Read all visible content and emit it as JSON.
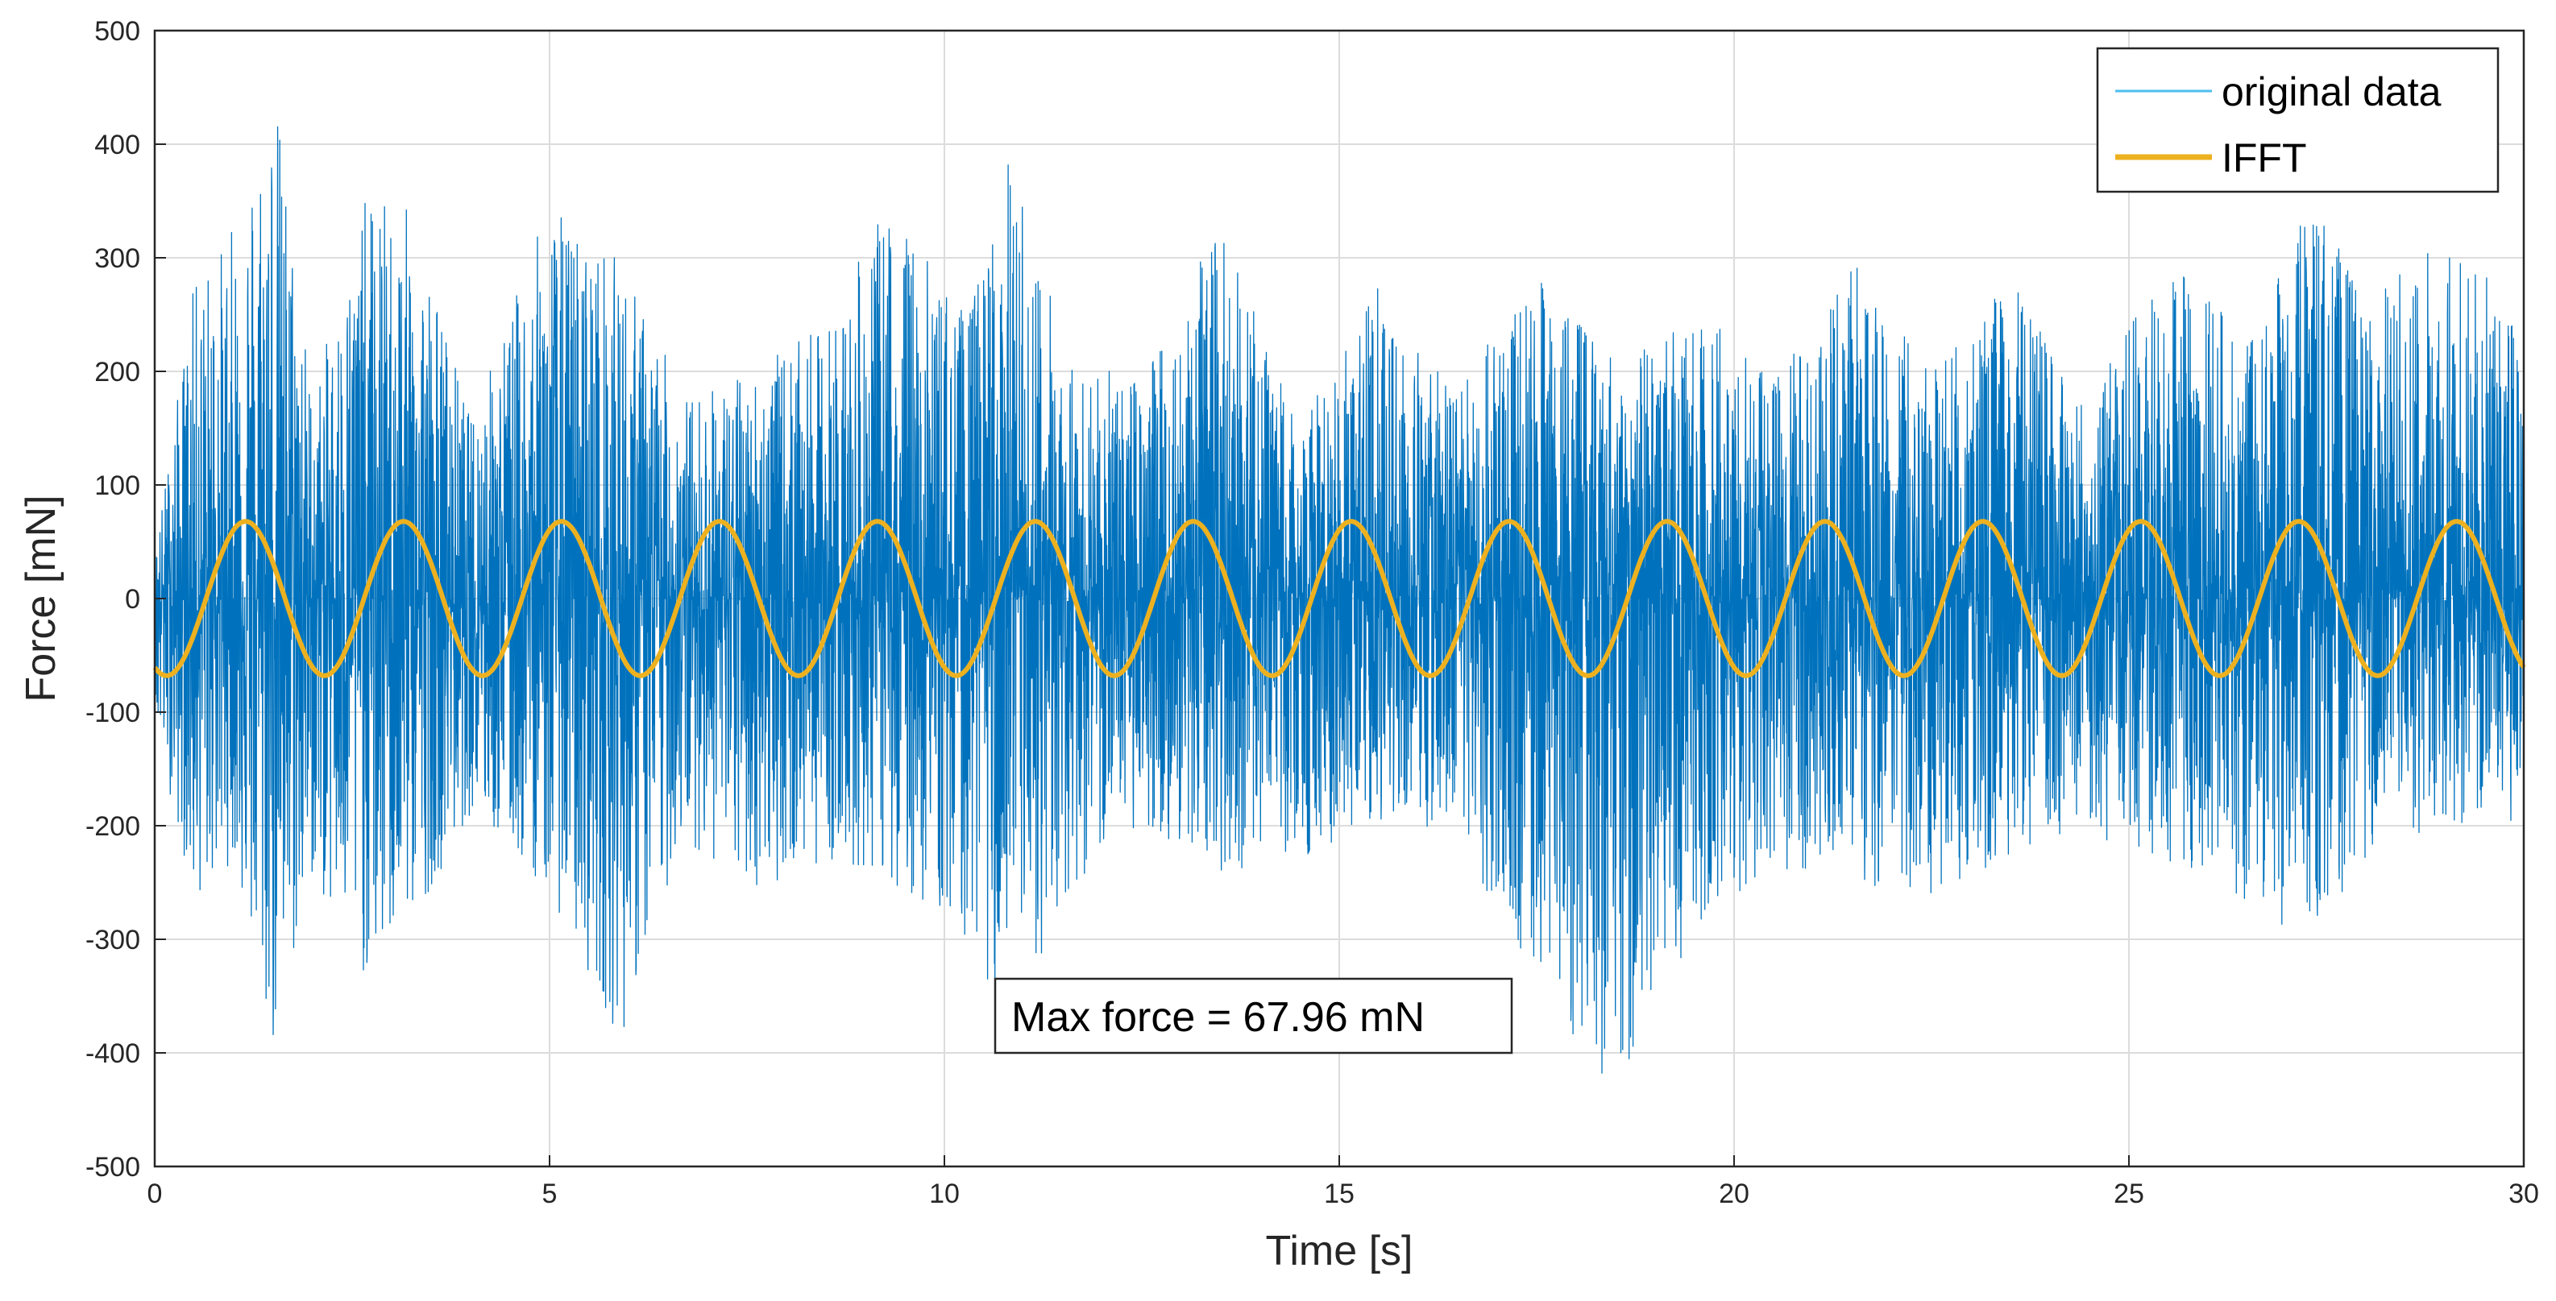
{
  "chart_data": {
    "type": "line",
    "title": "",
    "xlabel": "Time [s]",
    "ylabel": "Force [mN]",
    "xlim": [
      0,
      30
    ],
    "ylim": [
      -500,
      500
    ],
    "xticks": [
      "0",
      "5",
      "10",
      "15",
      "20",
      "25",
      "30"
    ],
    "yticks": [
      "500",
      "400",
      "300",
      "200",
      "100",
      "0",
      "-100",
      "-200",
      "-300",
      "-400",
      "-500"
    ],
    "grid": true,
    "legend_position": "top-right",
    "series": [
      {
        "name": "original data",
        "color": "#0072BD",
        "description_envelope": {
          "t": [
            0,
            0.5,
            1.0,
            1.5,
            2.0,
            2.7,
            3.3,
            4.0,
            5.0,
            5.9,
            6.7,
            7.5,
            8.5,
            9.3,
            10.3,
            10.8,
            11.7,
            12.5,
            13.5,
            14.5,
            15.5,
            16.5,
            17.5,
            18.5,
            19.5,
            20.5,
            21.5,
            22.5,
            23.5,
            24.5,
            25.5,
            26.5,
            27.3,
            28.0,
            29.0,
            30.0
          ],
          "upper": [
            40,
            280,
            330,
            470,
            180,
            360,
            340,
            160,
            350,
            300,
            180,
            200,
            240,
            350,
            250,
            390,
            200,
            200,
            330,
            150,
            280,
            180,
            300,
            210,
            260,
            190,
            300,
            200,
            280,
            170,
            310,
            230,
            370,
            260,
            330,
            240
          ],
          "lower": [
            -110,
            -270,
            -230,
            -410,
            -250,
            -340,
            -280,
            -190,
            -260,
            -390,
            -210,
            -260,
            -230,
            -250,
            -300,
            -380,
            -250,
            -200,
            -240,
            -230,
            -200,
            -240,
            -330,
            -460,
            -290,
            -240,
            -250,
            -260,
            -230,
            -210,
            -230,
            -280,
            -300,
            -230,
            -200,
            -200
          ]
        }
      },
      {
        "name": "IFFT",
        "color": "#EDB120",
        "amplitude": 67.96,
        "frequency_hz": 0.5,
        "phase_note": "minimum at t = 0.15 s"
      }
    ],
    "annotations": [
      {
        "text": "Max force = 67.96 mN"
      }
    ]
  }
}
